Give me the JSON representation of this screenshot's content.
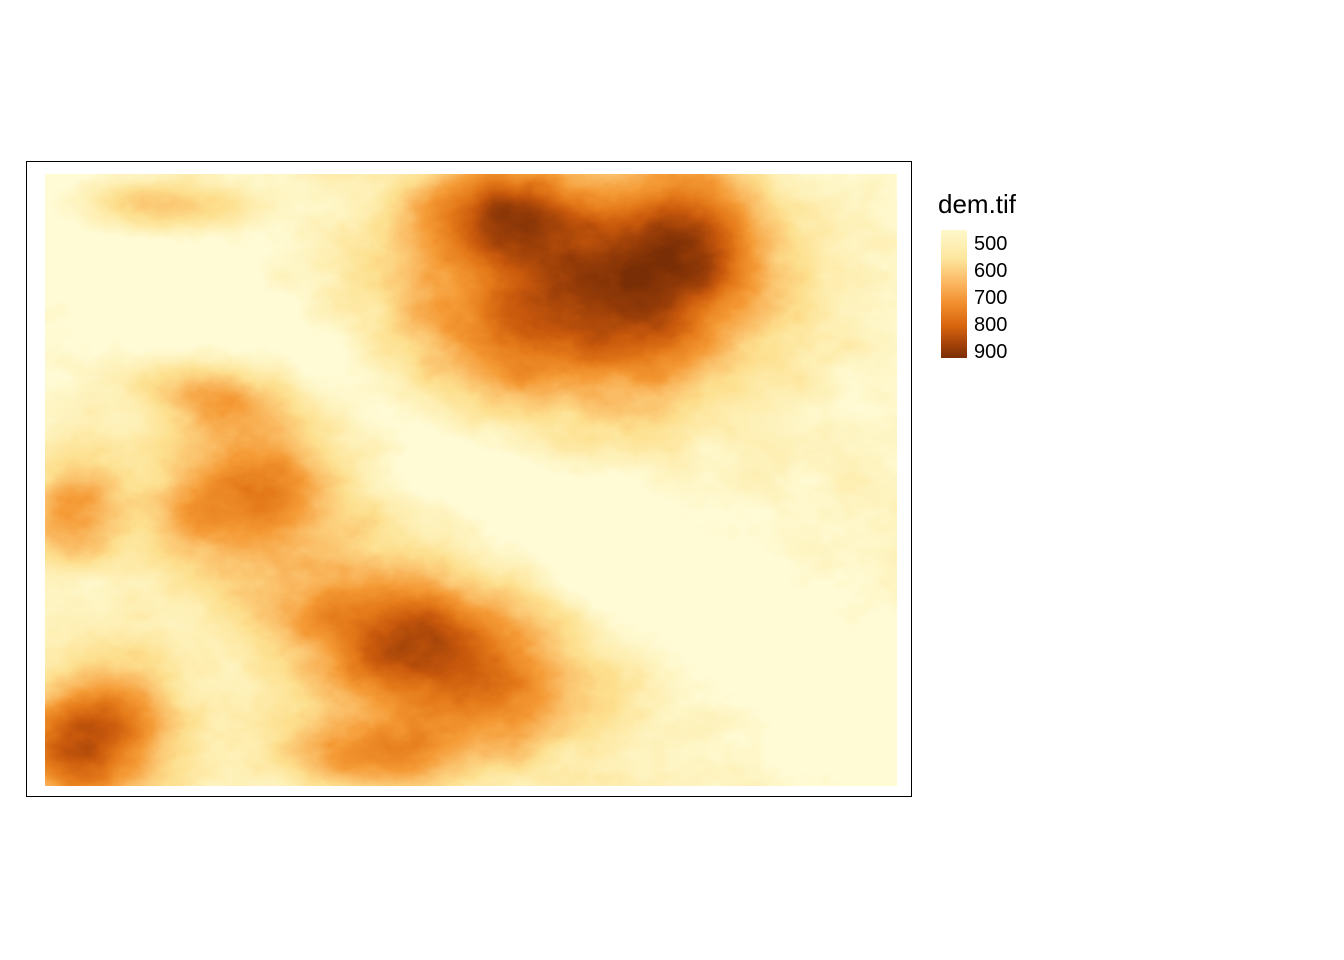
{
  "legend": {
    "title": "dem.tif",
    "labels": [
      "500",
      "600",
      "700",
      "800",
      "900"
    ],
    "colors": [
      "#fff8cc",
      "#fde79f",
      "#f6a345",
      "#d7640e",
      "#7a2e05"
    ]
  },
  "map": {
    "layer": "dem.tif",
    "palette": [
      "#fffbd5",
      "#fef0b5",
      "#fde08f",
      "#fbc06a",
      "#f59b36",
      "#e57b1a",
      "#c9590c",
      "#9c3f08",
      "#7a2e05"
    ],
    "value_range": [
      480,
      920
    ]
  }
}
